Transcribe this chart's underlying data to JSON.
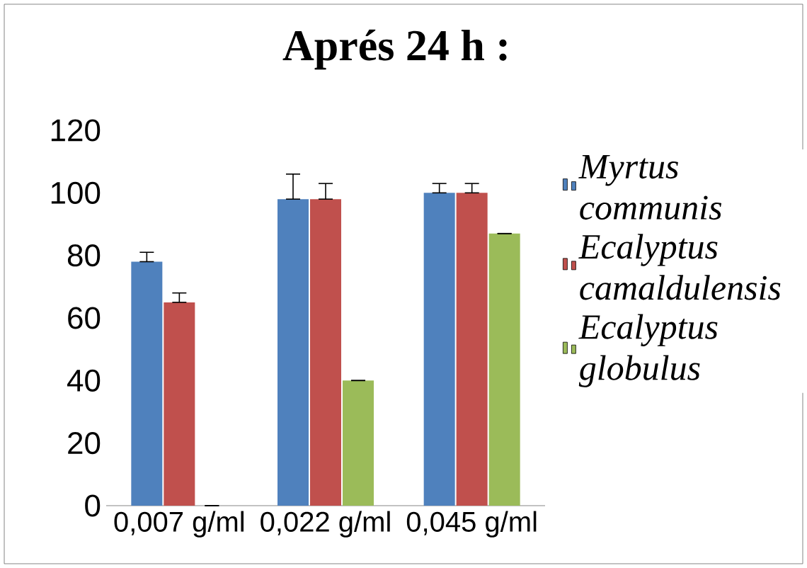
{
  "chart_data": {
    "type": "bar",
    "title": "Aprés 24 h :",
    "categories": [
      "0,007 g/ml",
      "0,022 g/ml",
      "0,045 g/ml"
    ],
    "series": [
      {
        "name": "Myrtus communis",
        "color": "#4f81bd",
        "values": [
          78,
          98,
          100
        ],
        "errors": [
          [
            78,
            81
          ],
          [
            98,
            106
          ],
          [
            100,
            103
          ]
        ]
      },
      {
        "name": "Ecalyptus camaldulensis",
        "color": "#c0504d",
        "values": [
          65,
          98,
          100
        ],
        "errors": [
          [
            65,
            68
          ],
          [
            98,
            103
          ],
          [
            100,
            103
          ]
        ]
      },
      {
        "name": "Ecalyptus globulus",
        "color": "#9bbb59",
        "values": [
          0,
          40,
          87
        ],
        "errors": [
          null,
          null,
          null
        ]
      }
    ],
    "ylim": [
      0,
      120
    ],
    "yticks": [
      0,
      20,
      40,
      60,
      80,
      100,
      120
    ],
    "legend": "right"
  }
}
